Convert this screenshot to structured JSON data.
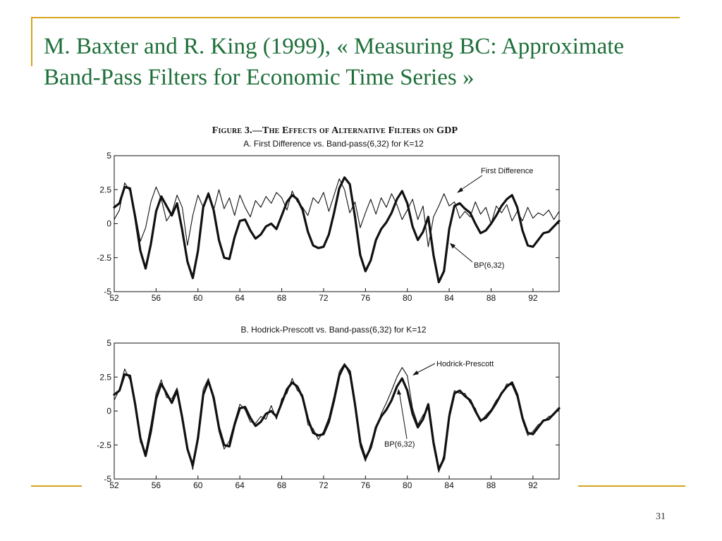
{
  "slide": {
    "title_line1": "M. Baxter and R. King (1999), « Measuring BC: Approximate",
    "title_line2": "Band-Pass Filters for Economic Time Series »",
    "figure_caption": "Figure 3.—The Effects of Alternative Filters on GDP",
    "page_number": "31",
    "colors": {
      "title": "#1e6f3a",
      "rule": "#d4a51f"
    }
  },
  "chart_data": [
    {
      "type": "line",
      "title": "A. First Difference vs. Band-pass(6,32) for K=12",
      "xlabel": "",
      "ylabel": "",
      "xlim": [
        52,
        94.5
      ],
      "ylim": [
        -5,
        5
      ],
      "x_ticks": [
        "52",
        "56",
        "60",
        "64",
        "68",
        "72",
        "76",
        "80",
        "84",
        "88",
        "92"
      ],
      "y_ticks": [
        "5",
        "2.5",
        "0",
        "-2.5",
        "-5"
      ],
      "annotations": [
        "First Difference",
        "BP(6,32)"
      ],
      "series": [
        {
          "name": "BP(6,32)",
          "style": "thick",
          "x": [
            52,
            52.5,
            53,
            53.5,
            54,
            54.5,
            55,
            55.5,
            56,
            56.5,
            57,
            57.5,
            58,
            58.5,
            59,
            59.5,
            60,
            60.5,
            61,
            61.5,
            62,
            62.5,
            63,
            63.5,
            64,
            64.5,
            65,
            65.5,
            66,
            66.5,
            67,
            67.5,
            68,
            68.5,
            69,
            69.5,
            70,
            70.5,
            71,
            71.5,
            72,
            72.5,
            73,
            73.5,
            74,
            74.5,
            75,
            75.5,
            76,
            76.5,
            77,
            77.5,
            78,
            78.5,
            79,
            79.5,
            80,
            80.5,
            81,
            81.5,
            82,
            82.5,
            83,
            83.5,
            84,
            84.5,
            85,
            85.5,
            86,
            86.5,
            87,
            87.5,
            88,
            88.5,
            89,
            89.5,
            90,
            90.5,
            91,
            91.5,
            92,
            92.5,
            93,
            93.5,
            94,
            94.5
          ],
          "values": [
            1.2,
            1.5,
            2.7,
            2.6,
            0.5,
            -2.0,
            -3.3,
            -1.5,
            0.9,
            2.0,
            1.3,
            0.6,
            1.5,
            -0.5,
            -2.8,
            -4.0,
            -2.0,
            1.2,
            2.2,
            1.0,
            -1.2,
            -2.5,
            -2.6,
            -1.0,
            0.2,
            0.3,
            -0.5,
            -1.1,
            -0.8,
            -0.2,
            0.0,
            -0.4,
            0.6,
            1.6,
            2.1,
            1.8,
            1.0,
            -0.6,
            -1.6,
            -1.8,
            -1.7,
            -0.8,
            0.8,
            2.6,
            3.4,
            2.9,
            0.5,
            -2.3,
            -3.5,
            -2.7,
            -1.2,
            -0.4,
            0.1,
            0.8,
            1.8,
            2.4,
            1.5,
            -0.2,
            -1.2,
            -0.6,
            0.5,
            -2.3,
            -4.3,
            -3.5,
            -0.4,
            1.3,
            1.5,
            1.1,
            0.8,
            0.0,
            -0.7,
            -0.5,
            0.0,
            0.6,
            1.3,
            1.8,
            2.1,
            1.2,
            -0.5,
            -1.6,
            -1.7,
            -1.2,
            -0.7,
            -0.6,
            -0.2,
            0.2
          ]
        },
        {
          "name": "First Difference",
          "style": "thin",
          "x": [
            52,
            52.5,
            53,
            53.5,
            54,
            54.5,
            55,
            55.5,
            56,
            56.5,
            57,
            57.5,
            58,
            58.5,
            59,
            59.5,
            60,
            60.5,
            61,
            61.5,
            62,
            62.5,
            63,
            63.5,
            64,
            64.5,
            65,
            65.5,
            66,
            66.5,
            67,
            67.5,
            68,
            68.5,
            69,
            69.5,
            70,
            70.5,
            71,
            71.5,
            72,
            72.5,
            73,
            73.5,
            74,
            74.5,
            75,
            75.5,
            76,
            76.5,
            77,
            77.5,
            78,
            78.5,
            79,
            79.5,
            80,
            80.5,
            81,
            81.5,
            82,
            82.5,
            83,
            83.5,
            84,
            84.5,
            85,
            85.5,
            86,
            86.5,
            87,
            87.5,
            88,
            88.5,
            89,
            89.5,
            90,
            90.5,
            91,
            91.5,
            92,
            92.5,
            93,
            93.5,
            94,
            94.5
          ],
          "values": [
            0.3,
            1.0,
            3.0,
            2.4,
            0.8,
            -1.3,
            -0.3,
            1.6,
            2.7,
            1.8,
            0.2,
            0.8,
            2.1,
            1.2,
            -1.6,
            0.6,
            2.1,
            1.2,
            2.3,
            1.0,
            2.5,
            1.1,
            1.9,
            0.6,
            2.1,
            1.2,
            0.5,
            1.7,
            1.2,
            2.0,
            1.5,
            2.3,
            1.9,
            1.0,
            2.4,
            1.6,
            1.2,
            0.6,
            1.9,
            1.5,
            2.3,
            0.9,
            2.1,
            3.3,
            2.5,
            0.8,
            1.6,
            -0.3,
            0.8,
            1.8,
            0.7,
            1.9,
            1.2,
            2.2,
            1.4,
            0.3,
            1.0,
            1.8,
            0.3,
            1.3,
            -1.7,
            0.5,
            1.3,
            2.2,
            1.3,
            1.6,
            0.4,
            0.9,
            0.5,
            1.6,
            0.7,
            1.2,
            0.0,
            1.3,
            0.8,
            1.4,
            0.2,
            0.9,
            0.2,
            1.2,
            0.4,
            0.8,
            0.6,
            1.0,
            0.3,
            0.9
          ]
        }
      ]
    },
    {
      "type": "line",
      "title": "B. Hodrick-Prescott vs. Band-pass(6,32) for K=12",
      "xlabel": "",
      "ylabel": "",
      "xlim": [
        52,
        94.5
      ],
      "ylim": [
        -5,
        5
      ],
      "x_ticks": [
        "52",
        "56",
        "60",
        "64",
        "68",
        "72",
        "76",
        "80",
        "84",
        "88",
        "92"
      ],
      "y_ticks": [
        "5",
        "2.5",
        "0",
        "-2.5",
        "-5"
      ],
      "annotations": [
        "Hodrick-Prescott",
        "BP(6,32)"
      ],
      "series": [
        {
          "name": "BP(6,32)",
          "style": "thick",
          "x": [
            52,
            52.5,
            53,
            53.5,
            54,
            54.5,
            55,
            55.5,
            56,
            56.5,
            57,
            57.5,
            58,
            58.5,
            59,
            59.5,
            60,
            60.5,
            61,
            61.5,
            62,
            62.5,
            63,
            63.5,
            64,
            64.5,
            65,
            65.5,
            66,
            66.5,
            67,
            67.5,
            68,
            68.5,
            69,
            69.5,
            70,
            70.5,
            71,
            71.5,
            72,
            72.5,
            73,
            73.5,
            74,
            74.5,
            75,
            75.5,
            76,
            76.5,
            77,
            77.5,
            78,
            78.5,
            79,
            79.5,
            80,
            80.5,
            81,
            81.5,
            82,
            82.5,
            83,
            83.5,
            84,
            84.5,
            85,
            85.5,
            86,
            86.5,
            87,
            87.5,
            88,
            88.5,
            89,
            89.5,
            90,
            90.5,
            91,
            91.5,
            92,
            92.5,
            93,
            93.5,
            94,
            94.5
          ],
          "values": [
            1.2,
            1.5,
            2.7,
            2.6,
            0.5,
            -2.0,
            -3.3,
            -1.5,
            0.9,
            2.0,
            1.3,
            0.6,
            1.5,
            -0.5,
            -2.8,
            -4.0,
            -2.0,
            1.2,
            2.2,
            1.0,
            -1.2,
            -2.5,
            -2.6,
            -1.0,
            0.2,
            0.3,
            -0.5,
            -1.1,
            -0.8,
            -0.2,
            0.0,
            -0.4,
            0.6,
            1.6,
            2.1,
            1.8,
            1.0,
            -0.6,
            -1.6,
            -1.8,
            -1.7,
            -0.8,
            0.8,
            2.6,
            3.4,
            2.9,
            0.5,
            -2.3,
            -3.5,
            -2.7,
            -1.2,
            -0.4,
            0.1,
            0.8,
            1.8,
            2.4,
            1.5,
            -0.2,
            -1.2,
            -0.6,
            0.5,
            -2.3,
            -4.3,
            -3.5,
            -0.4,
            1.3,
            1.5,
            1.1,
            0.8,
            0.0,
            -0.7,
            -0.5,
            0.0,
            0.6,
            1.3,
            1.8,
            2.1,
            1.2,
            -0.5,
            -1.6,
            -1.7,
            -1.2,
            -0.7,
            -0.6,
            -0.2,
            0.2
          ]
        },
        {
          "name": "Hodrick-Prescott",
          "style": "thin",
          "x": [
            52,
            52.5,
            53,
            53.5,
            54,
            54.5,
            55,
            55.5,
            56,
            56.5,
            57,
            57.5,
            58,
            58.5,
            59,
            59.5,
            60,
            60.5,
            61,
            61.5,
            62,
            62.5,
            63,
            63.5,
            64,
            64.5,
            65,
            65.5,
            66,
            66.5,
            67,
            67.5,
            68,
            68.5,
            69,
            69.5,
            70,
            70.5,
            71,
            71.5,
            72,
            72.5,
            73,
            73.5,
            74,
            74.5,
            75,
            75.5,
            76,
            76.5,
            77,
            77.5,
            78,
            78.5,
            79,
            79.5,
            80,
            80.5,
            81,
            81.5,
            82,
            82.5,
            83,
            83.5,
            84,
            84.5,
            85,
            85.5,
            86,
            86.5,
            87,
            87.5,
            88,
            88.5,
            89,
            89.5,
            90,
            90.5,
            91,
            91.5,
            92,
            92.5,
            93,
            93.5,
            94,
            94.5
          ],
          "values": [
            0.8,
            1.6,
            3.1,
            2.3,
            0.8,
            -2.3,
            -3.0,
            -1.0,
            1.3,
            2.3,
            1.0,
            0.9,
            1.7,
            -0.8,
            -2.6,
            -4.3,
            -1.6,
            1.6,
            2.4,
            0.7,
            -1.5,
            -2.8,
            -2.2,
            -0.8,
            0.5,
            0.1,
            -0.8,
            -0.9,
            -0.4,
            -0.6,
            0.4,
            -0.6,
            0.9,
            1.3,
            2.4,
            1.5,
            1.2,
            -1.0,
            -1.3,
            -2.1,
            -1.5,
            -0.5,
            1.1,
            2.9,
            3.5,
            2.6,
            0.2,
            -2.6,
            -3.7,
            -2.4,
            -1.4,
            -0.2,
            0.6,
            1.5,
            2.5,
            3.2,
            2.6,
            0.2,
            -1.0,
            -0.3,
            0.2,
            -2.6,
            -4.5,
            -3.2,
            -0.1,
            1.5,
            1.3,
            1.3,
            0.6,
            0.2,
            -0.8,
            -0.3,
            0.1,
            0.8,
            1.2,
            2.0,
            1.9,
            1.0,
            -0.7,
            -1.8,
            -1.5,
            -1.0,
            -0.8,
            -0.4,
            -0.3,
            0.3
          ]
        }
      ]
    }
  ]
}
